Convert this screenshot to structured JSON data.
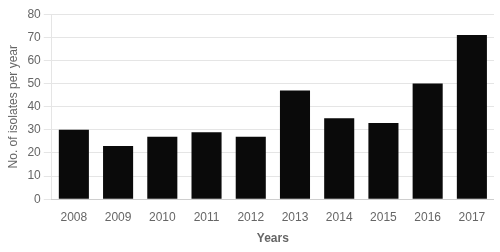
{
  "chart_data": {
    "type": "bar",
    "categories": [
      "2008",
      "2009",
      "2010",
      "2011",
      "2012",
      "2013",
      "2014",
      "2015",
      "2016",
      "2017"
    ],
    "values": [
      30,
      23,
      27,
      29,
      27,
      47,
      35,
      33,
      50,
      71
    ],
    "color": "#0a0a0a",
    "xlabel": "Years",
    "ylabel": "No. of isolates per year",
    "ylim": [
      0,
      80
    ],
    "yticks": [
      0,
      10,
      20,
      30,
      40,
      50,
      60,
      70,
      80
    ],
    "grid": true
  }
}
